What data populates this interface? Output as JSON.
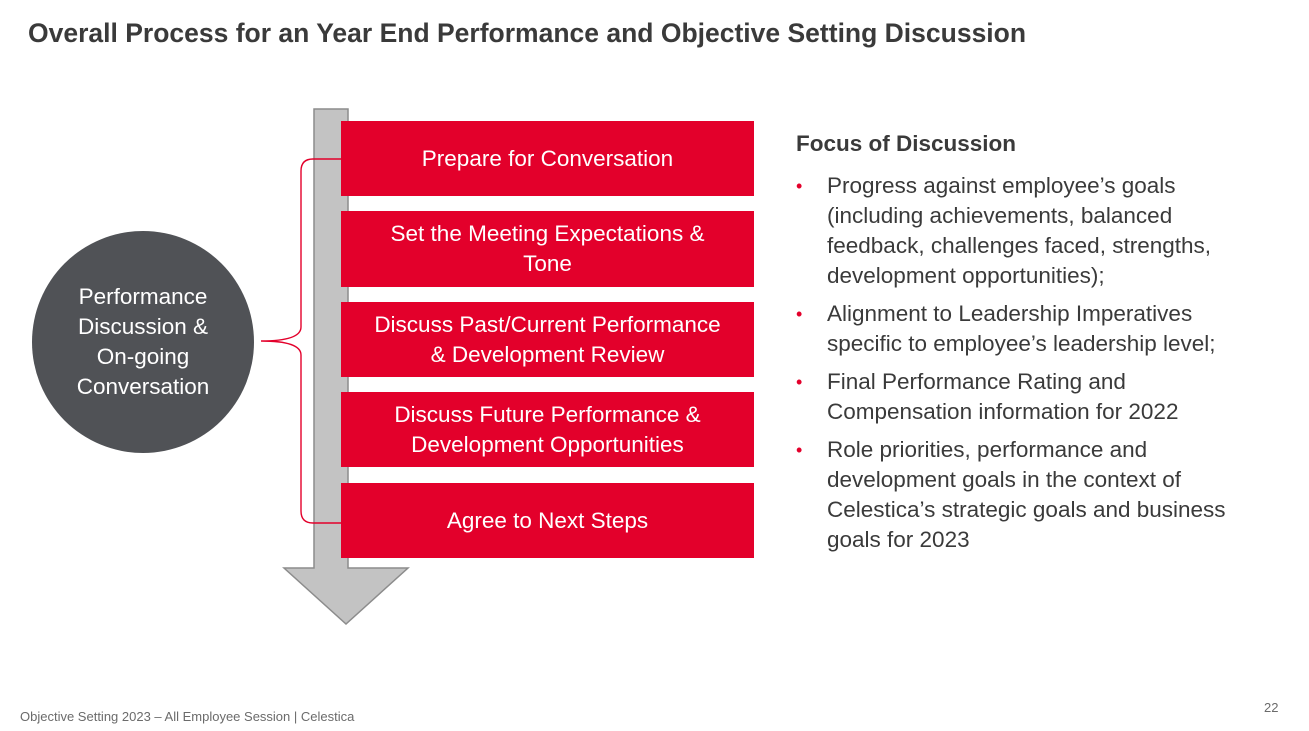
{
  "title": "Overall Process for an Year End Performance and Objective Setting Discussion",
  "circle": {
    "lines": [
      "Performance",
      "Discussion &",
      "On-going",
      "Conversation"
    ]
  },
  "steps": [
    {
      "lines": [
        "Prepare for Conversation"
      ]
    },
    {
      "lines": [
        "Set the Meeting Expectations &",
        "Tone"
      ]
    },
    {
      "lines": [
        "Discuss Past/Current Performance",
        "& Development Review"
      ]
    },
    {
      "lines": [
        "Discuss Future Performance &",
        "Development Opportunities"
      ]
    },
    {
      "lines": [
        "Agree to Next Steps"
      ]
    }
  ],
  "focus": {
    "title": "Focus of Discussion",
    "bullet_symbol": "•",
    "items": [
      {
        "lines": [
          "Progress against employee’s goals",
          "(including achievements, balanced",
          "feedback, challenges faced, strengths,",
          "development opportunities);"
        ]
      },
      {
        "lines": [
          "Alignment to Leadership Imperatives",
          "specific to employee’s leadership level;"
        ]
      },
      {
        "lines": [
          "Final Performance Rating and",
          "Compensation information for 2022"
        ]
      },
      {
        "lines": [
          "Role priorities, performance and",
          "development goals in the context of",
          "Celestica’s strategic goals and business",
          "goals for 2023"
        ]
      }
    ]
  },
  "footer": "Objective Setting 2023 – All Employee Session | Celestica",
  "page_number": "22",
  "colors": {
    "accent": "#e3002b",
    "circle": "#505256",
    "arrow_fill": "#c3c3c3",
    "arrow_stroke": "#8c8c8c",
    "text": "#3a3a3a"
  }
}
